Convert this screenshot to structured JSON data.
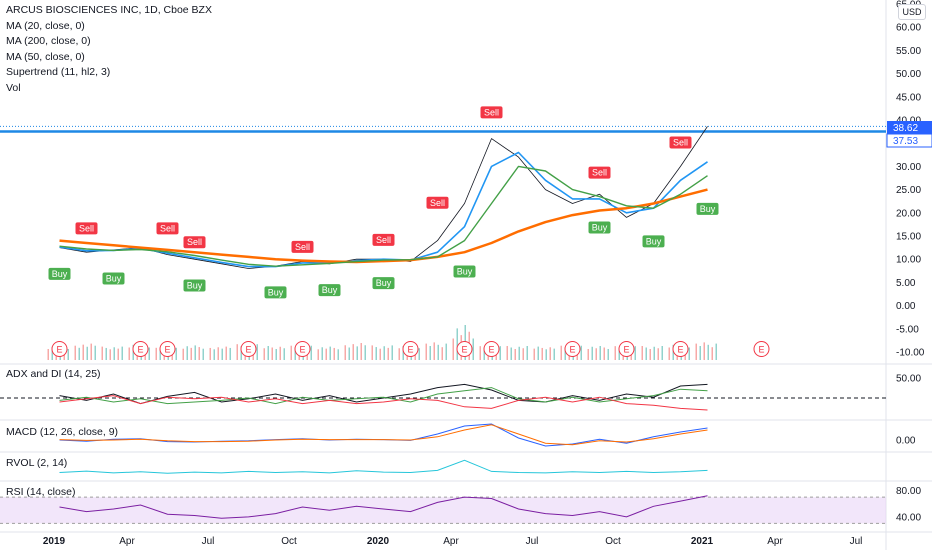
{
  "legend": {
    "title": "ARCUS BIOSCIENCES INC, 1D, Cboe BZX",
    "studies": [
      "MA (20, close, 0)",
      "MA (200, close, 0)",
      "MA (50, close, 0)",
      "Supertrend (11, hl2, 3)",
      "Vol"
    ]
  },
  "currency": "USD",
  "price_tags": {
    "last": "38.62",
    "line": "37.53",
    "last_color": "#2962ff",
    "line_color": "#2962ff"
  },
  "panes": {
    "adx_label": "ADX and DI (14, 25)",
    "macd_label": "MACD (12, 26, close, 9)",
    "rvol_label": "RVOL (2, 14)",
    "rsi_label": "RSI (14, close)"
  },
  "colors": {
    "ma20": "#2196f3",
    "ma200": "#ff6d00",
    "ma50": "#43a047",
    "supertrend_up": "#43a047",
    "supertrend_down": "#f23645",
    "buy": "#4caf50",
    "sell": "#f23645",
    "hline": "#1e88e5",
    "rsi_band": "#e9d5f7",
    "rsi_line": "#7b1fa2"
  },
  "chart_data": [
    {
      "type": "line",
      "title": "ARCUS BIOSCIENCES INC, 1D, Cboe BZX",
      "x_axis": [
        "2019",
        "Apr",
        "Jul",
        "Oct",
        "2020",
        "Apr",
        "Jul",
        "Oct",
        "2021",
        "Apr",
        "Jul"
      ],
      "y_ticks": [
        "65.00",
        "60.00",
        "55.00",
        "50.00",
        "45.00",
        "40.00",
        "35.00",
        "30.00",
        "25.00",
        "20.00",
        "15.00",
        "10.00",
        "5.00",
        "0.00",
        "-5.00",
        "-10.00"
      ],
      "ylim": [
        -10,
        65
      ],
      "horizontal_line": 37.53,
      "last_price": 38.62,
      "months": [
        "2019-01",
        "2019-02",
        "2019-03",
        "2019-04",
        "2019-05",
        "2019-06",
        "2019-07",
        "2019-08",
        "2019-09",
        "2019-10",
        "2019-11",
        "2019-12",
        "2020-01",
        "2020-02",
        "2020-03",
        "2020-04",
        "2020-05",
        "2020-06",
        "2020-07",
        "2020-08",
        "2020-09",
        "2020-10",
        "2020-11",
        "2020-12",
        "2021-01"
      ],
      "series": [
        {
          "name": "Close",
          "values": [
            12.5,
            11.5,
            12.0,
            12.5,
            11.0,
            10.0,
            9.0,
            8.0,
            8.5,
            9.5,
            9.0,
            10.0,
            10.0,
            9.5,
            14.0,
            22.0,
            36.0,
            32.0,
            25.0,
            22.0,
            24.0,
            19.0,
            22.0,
            30.0,
            38.62
          ]
        },
        {
          "name": "MA (20, close, 0)",
          "values": [
            12.6,
            11.8,
            11.9,
            12.3,
            11.3,
            10.3,
            9.3,
            8.4,
            8.4,
            9.2,
            9.2,
            9.7,
            10.0,
            9.8,
            11.5,
            17.0,
            30.0,
            33.0,
            27.0,
            23.0,
            23.0,
            20.0,
            21.0,
            27.0,
            31.0
          ]
        },
        {
          "name": "MA (200, close, 0)",
          "values": [
            14.0,
            13.5,
            13.0,
            12.5,
            12.0,
            11.5,
            11.0,
            10.5,
            10.0,
            9.7,
            9.5,
            9.4,
            9.6,
            9.8,
            10.5,
            11.5,
            13.5,
            16.0,
            18.0,
            19.5,
            20.5,
            21.0,
            22.0,
            23.5,
            25.0
          ]
        },
        {
          "name": "MA (50, close, 0)",
          "values": [
            12.8,
            12.2,
            11.9,
            12.1,
            11.6,
            10.8,
            9.8,
            8.9,
            8.5,
            8.8,
            9.1,
            9.5,
            9.8,
            9.9,
            10.5,
            14.0,
            22.0,
            30.0,
            29.0,
            25.0,
            23.5,
            21.5,
            21.0,
            24.0,
            28.0
          ]
        }
      ],
      "signals": [
        {
          "label": "Buy",
          "month": "2019-01",
          "value": 9.0
        },
        {
          "label": "Sell",
          "month": "2019-02",
          "value": 14.5
        },
        {
          "label": "Buy",
          "month": "2019-03",
          "value": 8.0
        },
        {
          "label": "Sell",
          "month": "2019-05",
          "value": 14.5
        },
        {
          "label": "Sell",
          "month": "2019-06",
          "value": 11.5
        },
        {
          "label": "Buy",
          "month": "2019-06",
          "value": 6.5
        },
        {
          "label": "Buy",
          "month": "2019-09",
          "value": 5.0
        },
        {
          "label": "Sell",
          "month": "2019-10",
          "value": 10.5
        },
        {
          "label": "Buy",
          "month": "2019-11",
          "value": 5.5
        },
        {
          "label": "Sell",
          "month": "2020-01",
          "value": 12.0
        },
        {
          "label": "Buy",
          "month": "2020-01",
          "value": 7.0
        },
        {
          "label": "Sell",
          "month": "2020-03",
          "value": 20.0
        },
        {
          "label": "Buy",
          "month": "2020-04",
          "value": 9.5
        },
        {
          "label": "Sell",
          "month": "2020-05",
          "value": 39.5
        },
        {
          "label": "Buy",
          "month": "2020-09",
          "value": 19.0
        },
        {
          "label": "Sell",
          "month": "2020-09",
          "value": 26.5
        },
        {
          "label": "Buy",
          "month": "2020-11",
          "value": 16.0
        },
        {
          "label": "Sell",
          "month": "2020-12",
          "value": 33.0
        },
        {
          "label": "Buy",
          "month": "2021-01",
          "value": 23.0
        }
      ],
      "earnings_marker": "E",
      "earnings_months": [
        "2019-01",
        "2019-04",
        "2019-05",
        "2019-08",
        "2019-10",
        "2020-02",
        "2020-04",
        "2020-05",
        "2020-08",
        "2020-10",
        "2020-12",
        "2021-03"
      ]
    },
    {
      "type": "line",
      "title": "ADX and DI (14, 25)",
      "y_ticks": [
        "50.00"
      ],
      "reference": 25,
      "series": [
        {
          "name": "ADX",
          "values": [
            28,
            22,
            30,
            18,
            27,
            32,
            20,
            24,
            30,
            22,
            28,
            20,
            25,
            30,
            38,
            42,
            35,
            22,
            20,
            28,
            22,
            30,
            26,
            40,
            42
          ]
        },
        {
          "name": "+DI",
          "values": [
            22,
            26,
            20,
            24,
            18,
            20,
            22,
            25,
            18,
            26,
            22,
            24,
            26,
            20,
            30,
            34,
            38,
            24,
            20,
            26,
            20,
            24,
            28,
            36,
            34
          ]
        },
        {
          "name": "-DI",
          "values": [
            20,
            24,
            28,
            18,
            26,
            24,
            26,
            20,
            24,
            18,
            22,
            18,
            20,
            24,
            22,
            14,
            12,
            22,
            26,
            20,
            26,
            18,
            16,
            12,
            10
          ]
        }
      ]
    },
    {
      "type": "line",
      "title": "MACD (12, 26, close, 9)",
      "y_ticks": [
        "0.00"
      ],
      "series": [
        {
          "name": "MACD",
          "values": [
            0.0,
            -0.3,
            0.2,
            0.3,
            -0.4,
            -0.5,
            -0.3,
            -0.2,
            0.1,
            0.3,
            0.0,
            0.2,
            0.1,
            -0.1,
            1.5,
            3.5,
            4.0,
            0.5,
            -1.5,
            -1.0,
            0.2,
            -0.8,
            0.8,
            2.0,
            3.0
          ]
        },
        {
          "name": "Signal",
          "values": [
            0.1,
            -0.1,
            0.0,
            0.2,
            -0.2,
            -0.4,
            -0.4,
            -0.3,
            0.0,
            0.2,
            0.1,
            0.1,
            0.1,
            0.0,
            0.8,
            2.5,
            3.8,
            1.5,
            -0.8,
            -1.2,
            -0.2,
            -0.5,
            0.3,
            1.5,
            2.5
          ]
        }
      ]
    },
    {
      "type": "line",
      "title": "RVOL (2, 14)",
      "series": [
        {
          "name": "RVOL",
          "values": [
            1.0,
            1.4,
            0.9,
            1.2,
            0.8,
            1.1,
            0.9,
            1.3,
            1.0,
            1.2,
            0.9,
            1.5,
            1.1,
            1.0,
            1.6,
            4.5,
            1.3,
            1.0,
            0.9,
            1.2,
            1.0,
            1.3,
            1.0,
            1.2,
            1.6
          ]
        }
      ]
    },
    {
      "type": "line",
      "title": "RSI (14, close)",
      "y_ticks": [
        "80.00",
        "40.00"
      ],
      "ylim": [
        20,
        90
      ],
      "band": [
        30,
        70
      ],
      "series": [
        {
          "name": "RSI",
          "values": [
            55,
            48,
            52,
            58,
            44,
            42,
            38,
            40,
            45,
            55,
            50,
            56,
            52,
            48,
            62,
            70,
            68,
            52,
            45,
            42,
            48,
            40,
            56,
            64,
            72
          ]
        }
      ]
    }
  ]
}
